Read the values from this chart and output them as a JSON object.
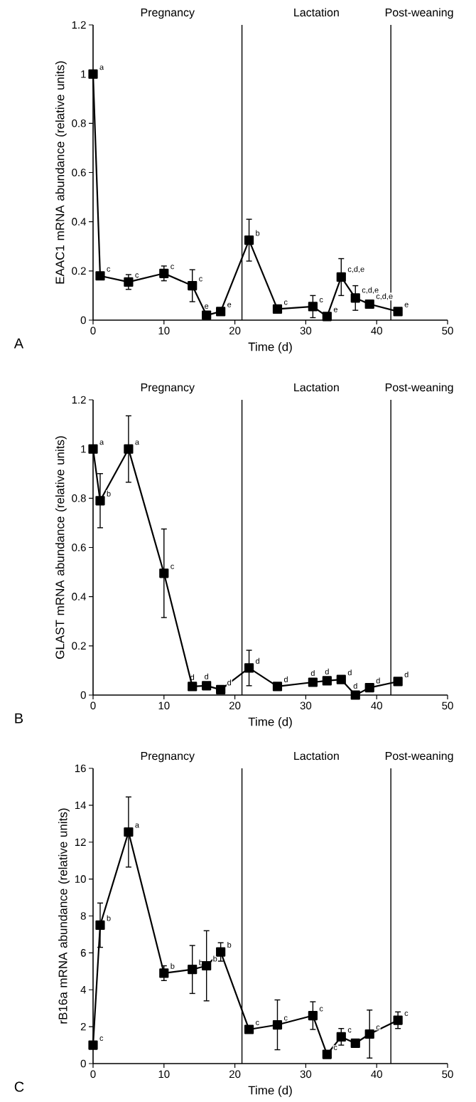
{
  "chart_data": [
    {
      "type": "line",
      "xlabel": "Time (d)",
      "ylabel": "EAAC1 mRNA abundance (relative units)",
      "x": [
        0,
        1,
        5,
        10,
        14,
        16,
        18,
        22,
        26,
        31,
        33,
        35,
        37,
        39,
        43
      ],
      "series": [
        {
          "color": "#000000",
          "values": [
            1.0,
            0.18,
            0.155,
            0.19,
            0.14,
            0.02,
            0.035,
            0.325,
            0.045,
            0.055,
            0.015,
            0.175,
            0.09,
            0.065,
            0.035
          ],
          "errors": [
            null,
            0.01,
            0.03,
            0.03,
            0.065,
            null,
            null,
            0.085,
            null,
            0.045,
            null,
            0.075,
            0.05,
            0.015,
            0.01
          ]
        }
      ],
      "xlim": [
        0,
        50
      ],
      "xticks": [
        0,
        10,
        20,
        30,
        40,
        50
      ],
      "ylim": [
        0,
        1.2
      ],
      "yticks": [
        0,
        0.2,
        0.4,
        0.6,
        0.8,
        1,
        1.2
      ],
      "marker": "square",
      "line_style": "solid",
      "ref_lines": [
        {
          "axis": "x",
          "value": 21
        },
        {
          "axis": "x",
          "value": 42
        }
      ],
      "annotations": [
        "Pregnancy",
        "Lactation",
        "Post-weaning",
        "A",
        {
          "text": "a",
          "x": 0,
          "y": 1.0
        },
        {
          "text": "c",
          "x": 1,
          "y": 0.18
        },
        {
          "text": "c",
          "x": 5,
          "y": 0.155
        },
        {
          "text": "c",
          "x": 10,
          "y": 0.19
        },
        {
          "text": "c",
          "x": 14,
          "y": 0.14
        },
        {
          "text": "e",
          "x": 16,
          "y": 0.02
        },
        {
          "text": "e",
          "x": 18,
          "y": 0.035
        },
        {
          "text": "b",
          "x": 22,
          "y": 0.325
        },
        {
          "text": "c",
          "x": 26,
          "y": 0.045
        },
        {
          "text": "c",
          "x": 31,
          "y": 0.055
        },
        {
          "text": "e",
          "x": 33,
          "y": 0.015
        },
        {
          "text": "c,d,e",
          "x": 35,
          "y": 0.175
        },
        {
          "text": "c,d,e",
          "x": 37,
          "y": 0.09
        },
        {
          "text": "c,d,e",
          "x": 39,
          "y": 0.065
        },
        {
          "text": "e",
          "x": 43,
          "y": 0.035
        }
      ]
    },
    {
      "type": "line",
      "xlabel": "Time (d)",
      "ylabel": "GLAST mRNA abundance (relative units)",
      "x": [
        0,
        1,
        5,
        10,
        14,
        16,
        18,
        22,
        26,
        31,
        33,
        35,
        37,
        39,
        43
      ],
      "series": [
        {
          "color": "#000000",
          "values": [
            1.0,
            0.79,
            1.0,
            0.495,
            0.035,
            0.038,
            0.022,
            0.11,
            0.035,
            0.052,
            0.058,
            0.063,
            0.0,
            0.03,
            0.055
          ],
          "errors": [
            null,
            0.11,
            0.135,
            0.18,
            null,
            null,
            null,
            0.072,
            null,
            null,
            null,
            null,
            null,
            0.015,
            null
          ]
        }
      ],
      "xlim": [
        0,
        50
      ],
      "xticks": [
        0,
        10,
        20,
        30,
        40,
        50
      ],
      "ylim": [
        0,
        1.2
      ],
      "yticks": [
        0,
        0.2,
        0.4,
        0.6,
        0.8,
        1,
        1.2
      ],
      "marker": "square",
      "line_style": "solid",
      "ref_lines": [
        {
          "axis": "x",
          "value": 21
        },
        {
          "axis": "x",
          "value": 42
        }
      ],
      "annotations": [
        "Pregnancy",
        "Lactation",
        "Post-weaning",
        "B",
        {
          "text": "a",
          "x": 0,
          "y": 1.0
        },
        {
          "text": "b",
          "x": 1,
          "y": 0.79
        },
        {
          "text": "a",
          "x": 5,
          "y": 1.0
        },
        {
          "text": "c",
          "x": 10,
          "y": 0.495
        },
        {
          "text": "d",
          "x": 14,
          "y": 0.035
        },
        {
          "text": "d",
          "x": 16,
          "y": 0.038
        },
        {
          "text": "d",
          "x": 18,
          "y": 0.022
        },
        {
          "text": "d",
          "x": 22,
          "y": 0.11
        },
        {
          "text": "d",
          "x": 26,
          "y": 0.035
        },
        {
          "text": "d",
          "x": 31,
          "y": 0.052
        },
        {
          "text": "d",
          "x": 33,
          "y": 0.058
        },
        {
          "text": "d",
          "x": 35,
          "y": 0.063
        },
        {
          "text": "d",
          "x": 37,
          "y": 0.0
        },
        {
          "text": "d",
          "x": 39,
          "y": 0.03
        },
        {
          "text": "d",
          "x": 43,
          "y": 0.055
        }
      ]
    },
    {
      "type": "line",
      "xlabel": "Time (d)",
      "ylabel": "rB16a mRNA abundance (relative units)",
      "x": [
        0,
        1,
        5,
        10,
        14,
        16,
        18,
        22,
        26,
        31,
        33,
        35,
        37,
        39,
        43
      ],
      "series": [
        {
          "color": "#000000",
          "values": [
            1.0,
            7.5,
            12.55,
            4.9,
            5.1,
            5.3,
            6.05,
            1.85,
            2.1,
            2.6,
            0.5,
            1.45,
            1.1,
            1.6,
            2.35
          ],
          "errors": [
            null,
            1.2,
            1.9,
            0.4,
            1.3,
            1.9,
            0.5,
            null,
            1.35,
            0.75,
            0.2,
            0.45,
            null,
            1.3,
            0.45
          ]
        }
      ],
      "xlim": [
        0,
        50
      ],
      "xticks": [
        0,
        10,
        20,
        30,
        40,
        50
      ],
      "ylim": [
        0,
        16
      ],
      "yticks": [
        0,
        2,
        4,
        6,
        8,
        10,
        12,
        14,
        16
      ],
      "marker": "square",
      "line_style": "solid",
      "ref_lines": [
        {
          "axis": "x",
          "value": 21
        },
        {
          "axis": "x",
          "value": 42
        }
      ],
      "annotations": [
        "Pregnancy",
        "Lactation",
        "Post-weaning",
        "C",
        {
          "text": "c",
          "x": 0,
          "y": 1.0
        },
        {
          "text": "b",
          "x": 1,
          "y": 7.5
        },
        {
          "text": "a",
          "x": 5,
          "y": 12.55
        },
        {
          "text": "b",
          "x": 10,
          "y": 4.9
        },
        {
          "text": "b",
          "x": 14,
          "y": 5.1
        },
        {
          "text": "b",
          "x": 16,
          "y": 5.3
        },
        {
          "text": "b",
          "x": 18,
          "y": 6.05
        },
        {
          "text": "c",
          "x": 22,
          "y": 1.85
        },
        {
          "text": "c",
          "x": 26,
          "y": 2.1
        },
        {
          "text": "c",
          "x": 31,
          "y": 2.6
        },
        {
          "text": "c",
          "x": 33,
          "y": 0.5
        },
        {
          "text": "c",
          "x": 35,
          "y": 1.45
        },
        {
          "text": "c",
          "x": 39,
          "y": 1.6
        },
        {
          "text": "c",
          "x": 43,
          "y": 2.35
        }
      ]
    }
  ]
}
